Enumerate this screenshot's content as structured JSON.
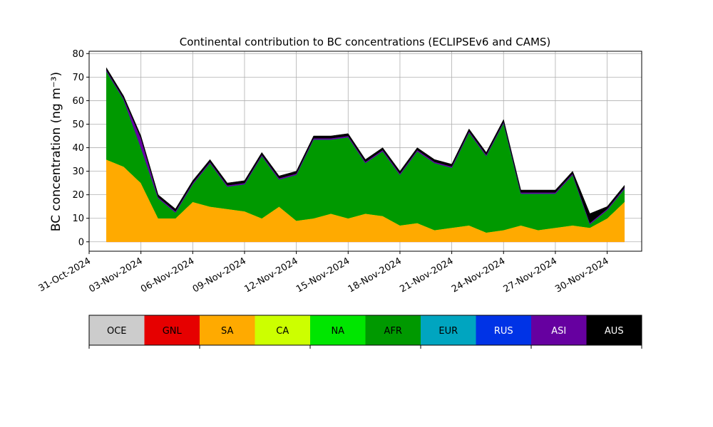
{
  "chart_data": {
    "type": "stacked_area",
    "title": "Continental contribution to BC concentrations (ECLIPSEv6 and CAMS)",
    "y_label": "BC concentration (ng m⁻³)",
    "x": [
      "2024-11-01",
      "2024-11-02",
      "2024-11-03",
      "2024-11-04",
      "2024-11-05",
      "2024-11-06",
      "2024-11-07",
      "2024-11-08",
      "2024-11-09",
      "2024-11-10",
      "2024-11-11",
      "2024-11-12",
      "2024-11-13",
      "2024-11-14",
      "2024-11-15",
      "2024-11-16",
      "2024-11-17",
      "2024-11-18",
      "2024-11-19",
      "2024-11-20",
      "2024-11-21",
      "2024-11-22",
      "2024-11-23",
      "2024-11-24",
      "2024-11-25",
      "2024-11-26",
      "2024-11-27",
      "2024-11-28",
      "2024-11-29",
      "2024-11-30",
      "2024-12-01"
    ],
    "series": [
      {
        "name": "OCE",
        "color": "#cccccc",
        "values": [
          0,
          0,
          0,
          0,
          0,
          0,
          0,
          0,
          0,
          0,
          0,
          0,
          0,
          0,
          0,
          0,
          0,
          0,
          0,
          0,
          0,
          0,
          0,
          0,
          0,
          0,
          0,
          0,
          0,
          0,
          0
        ]
      },
      {
        "name": "GNL",
        "color": "#e60000",
        "values": [
          0,
          0,
          0,
          0,
          0,
          0,
          0,
          0,
          0,
          0,
          0,
          0,
          0,
          0,
          0,
          0,
          0,
          0,
          0,
          0,
          0,
          0,
          0,
          0,
          0,
          0,
          0,
          0,
          0,
          0,
          0
        ]
      },
      {
        "name": "SA",
        "color": "#ffaa00",
        "values": [
          35,
          32,
          25,
          10,
          10,
          17,
          15,
          14,
          13,
          10,
          15,
          9,
          10,
          12,
          10,
          12,
          11,
          7,
          8,
          5,
          6,
          7,
          4,
          5,
          7,
          5,
          6,
          7,
          6,
          10,
          17
        ]
      },
      {
        "name": "CA",
        "color": "#ccff00",
        "values": [
          0,
          0,
          0,
          0,
          0,
          0,
          0,
          0,
          0,
          0,
          0,
          0,
          0,
          0,
          0,
          0,
          0,
          0,
          0,
          0,
          0,
          0,
          0,
          0,
          0,
          0,
          0,
          0,
          0,
          0,
          0
        ]
      },
      {
        "name": "NA",
        "color": "#00e600",
        "values": [
          0,
          0,
          0,
          0,
          0,
          0,
          0,
          0,
          0,
          0,
          0,
          0,
          0,
          0,
          0,
          0,
          0,
          0,
          0,
          0,
          0,
          0,
          0,
          0,
          0,
          0,
          0,
          0,
          0,
          0,
          0
        ]
      },
      {
        "name": "AFR",
        "color": "#009900",
        "values": [
          37.5,
          28.5,
          15,
          8.5,
          2.5,
          7.5,
          18.5,
          9.5,
          11.5,
          26.5,
          11.5,
          19.5,
          33.5,
          31.5,
          34.5,
          21.5,
          27.5,
          21.5,
          30.5,
          28.5,
          25.5,
          39.5,
          32.5,
          45.5,
          13.5,
          15.5,
          14.5,
          21.5,
          1.5,
          3.5,
          5.5
        ]
      },
      {
        "name": "EUR",
        "color": "#00a5c0",
        "values": [
          0,
          0,
          0,
          0,
          0,
          0,
          0,
          0,
          0,
          0,
          0,
          0,
          0,
          0,
          0,
          0,
          0,
          0,
          0,
          0,
          0,
          0,
          0,
          0,
          0,
          0,
          0,
          0,
          0,
          0,
          0
        ]
      },
      {
        "name": "RUS",
        "color": "#0033e6",
        "values": [
          0,
          0,
          0,
          0,
          0,
          0,
          0,
          0,
          0,
          0,
          0,
          0,
          0,
          0,
          0,
          0,
          0,
          0,
          0,
          0,
          0,
          0,
          0,
          0,
          0,
          0,
          0,
          0,
          0,
          0,
          0
        ]
      },
      {
        "name": "ASI",
        "color": "#6600a0",
        "values": [
          0.5,
          0.5,
          4,
          0.5,
          0.5,
          0.5,
          0.5,
          0.5,
          0.5,
          0.5,
          0.5,
          0.5,
          0.5,
          0.5,
          0.5,
          0.5,
          0.5,
          0.5,
          0.5,
          0.5,
          0.5,
          0.5,
          0.5,
          0.5,
          0.5,
          0.5,
          0.5,
          0.5,
          0.5,
          0.5,
          0.5
        ]
      },
      {
        "name": "AUS",
        "color": "#000000",
        "values": [
          1,
          1,
          1,
          1,
          1,
          1,
          1,
          1,
          1,
          1,
          1,
          1,
          1,
          1,
          1,
          1,
          1,
          1,
          1,
          1,
          1,
          1,
          1,
          1,
          1,
          1,
          1,
          1,
          4,
          1,
          1
        ]
      }
    ],
    "xlim": [
      "2024-10-31",
      "2024-12-02"
    ],
    "xticks": [
      {
        "value": "2024-10-31",
        "label": "31-Oct-2024"
      },
      {
        "value": "2024-11-03",
        "label": "03-Nov-2024"
      },
      {
        "value": "2024-11-06",
        "label": "06-Nov-2024"
      },
      {
        "value": "2024-11-09",
        "label": "09-Nov-2024"
      },
      {
        "value": "2024-11-12",
        "label": "12-Nov-2024"
      },
      {
        "value": "2024-11-15",
        "label": "15-Nov-2024"
      },
      {
        "value": "2024-11-18",
        "label": "18-Nov-2024"
      },
      {
        "value": "2024-11-21",
        "label": "21-Nov-2024"
      },
      {
        "value": "2024-11-24",
        "label": "24-Nov-2024"
      },
      {
        "value": "2024-11-27",
        "label": "27-Nov-2024"
      },
      {
        "value": "2024-11-30",
        "label": "30-Nov-2024"
      }
    ],
    "ylim": [
      -4,
      81
    ],
    "yticks": [
      0,
      10,
      20,
      30,
      40,
      50,
      60,
      70,
      80
    ],
    "grid": true
  }
}
